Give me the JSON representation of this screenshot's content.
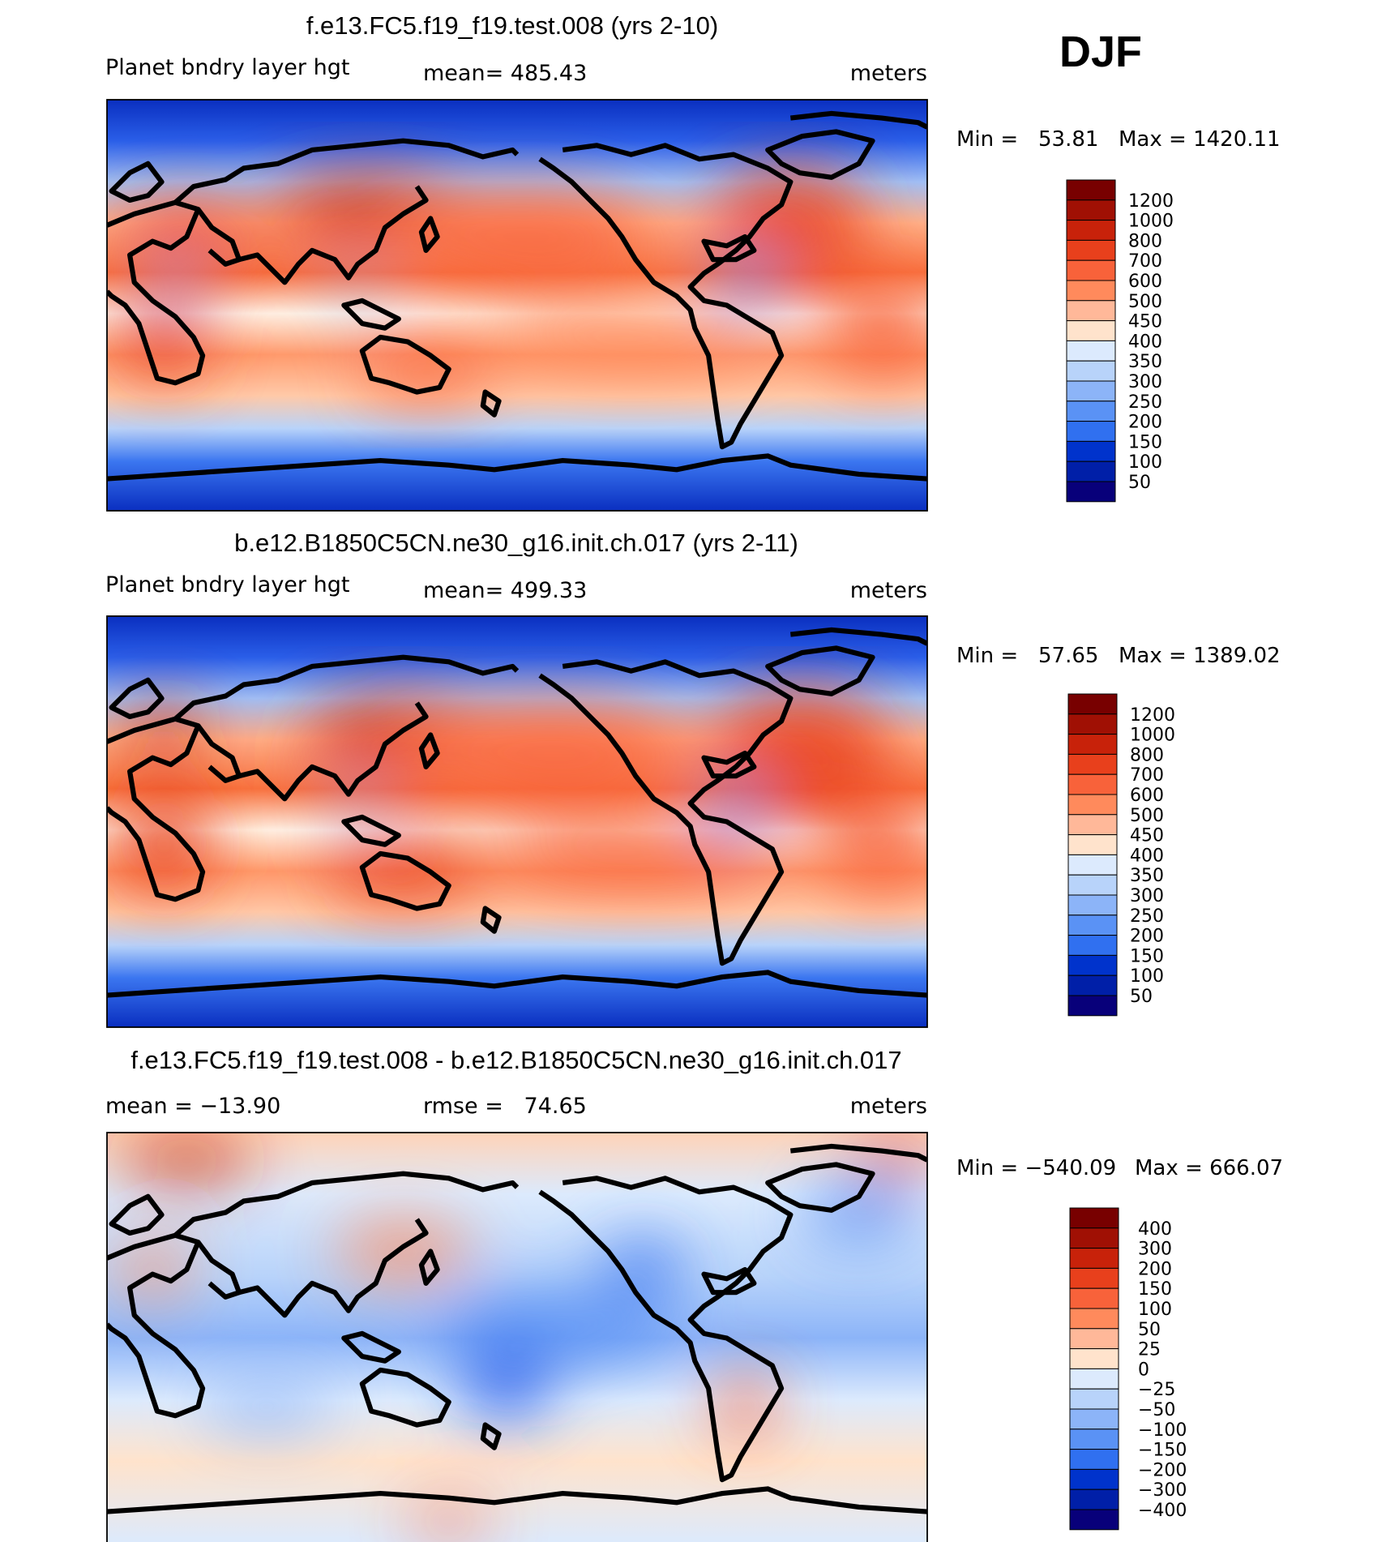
{
  "season": "DJF",
  "colors": {
    "diverging": [
      "#08007a",
      "#001fa8",
      "#0033cc",
      "#1452ea",
      "#3070f0",
      "#5a92f5",
      "#8cb4f8",
      "#b8d3fa",
      "#dceafd",
      "#fff0e2",
      "#ffd3b8",
      "#ffae8a",
      "#ff8a5c",
      "#f8623a",
      "#e8401c",
      "#c8220a",
      "#a01004",
      "#780000"
    ]
  },
  "chart_data": [
    {
      "type": "heatmap",
      "title": "f.e13.FC5.f19_f19.test.008 (yrs 2-10)",
      "variable": "Planet bndry layer hgt",
      "stat_left": "mean= 485.43",
      "units": "meters",
      "min_label": "Min =   53.81",
      "max_label": "Max = 1420.11",
      "min": 53.81,
      "max": 1420.11,
      "mean": 485.43,
      "colorbar_levels": [
        "1200",
        "1000",
        "800",
        "700",
        "600",
        "500",
        "450",
        "400",
        "350",
        "300",
        "250",
        "200",
        "150",
        "100",
        "50"
      ],
      "colorbar_colors": [
        "#780000",
        "#a01004",
        "#c8220a",
        "#e8401c",
        "#f8623a",
        "#ff8a5c",
        "#ffb899",
        "#ffe3cc",
        "#dceafd",
        "#b8d3fa",
        "#8cb4f8",
        "#5a92f5",
        "#3070f0",
        "#0033cc",
        "#001fa8",
        "#08007a"
      ],
      "pattern": "absolute"
    },
    {
      "type": "heatmap",
      "title": "b.e12.B1850C5CN.ne30_g16.init.ch.017 (yrs 2-11)",
      "variable": "Planet bndry layer hgt",
      "stat_left": "mean= 499.33",
      "units": "meters",
      "min_label": "Min =   57.65",
      "max_label": "Max = 1389.02",
      "min": 57.65,
      "max": 1389.02,
      "mean": 499.33,
      "colorbar_levels": [
        "1200",
        "1000",
        "800",
        "700",
        "600",
        "500",
        "450",
        "400",
        "350",
        "300",
        "250",
        "200",
        "150",
        "100",
        "50"
      ],
      "colorbar_colors": [
        "#780000",
        "#a01004",
        "#c8220a",
        "#e8401c",
        "#f8623a",
        "#ff8a5c",
        "#ffb899",
        "#ffe3cc",
        "#dceafd",
        "#b8d3fa",
        "#8cb4f8",
        "#5a92f5",
        "#3070f0",
        "#0033cc",
        "#001fa8",
        "#08007a"
      ],
      "pattern": "absolute"
    },
    {
      "type": "heatmap",
      "title": "f.e13.FC5.f19_f19.test.008 - b.e12.B1850C5CN.ne30_g16.init.ch.017",
      "variable": "mean = −13.90",
      "stat_left": "rmse =   74.65",
      "units": "meters",
      "min_label": "Min = −540.09",
      "max_label": "Max = 666.07",
      "min": -540.09,
      "max": 666.07,
      "mean": -13.9,
      "rmse": 74.65,
      "colorbar_levels": [
        "400",
        "300",
        "200",
        "150",
        "100",
        "50",
        "25",
        "0",
        "−25",
        "−50",
        "−100",
        "−150",
        "−200",
        "−300",
        "−400"
      ],
      "colorbar_colors": [
        "#780000",
        "#a01004",
        "#c8220a",
        "#e8401c",
        "#f8623a",
        "#ff8a5c",
        "#ffb899",
        "#ffe3cc",
        "#dceafd",
        "#b8d3fa",
        "#8cb4f8",
        "#5a92f5",
        "#3070f0",
        "#0033cc",
        "#001fa8",
        "#08007a"
      ],
      "pattern": "difference"
    }
  ]
}
